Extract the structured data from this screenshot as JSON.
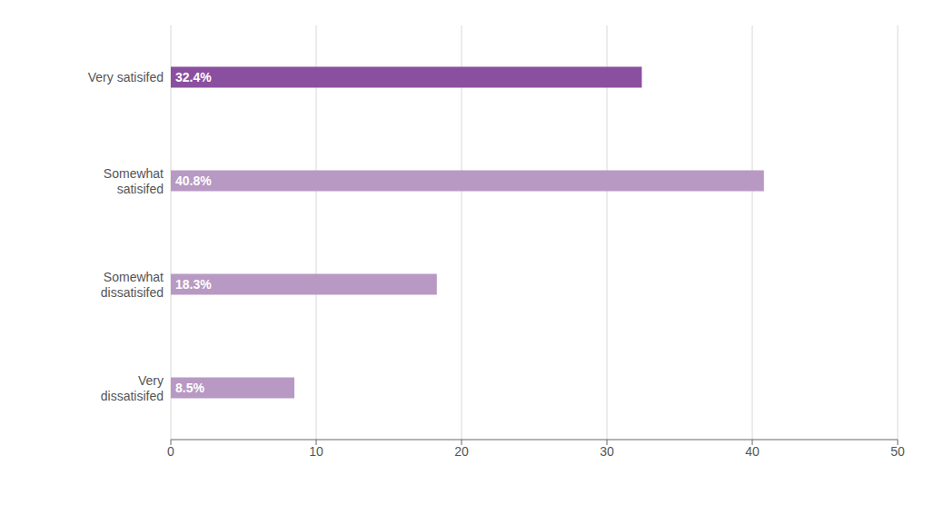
{
  "chart_data": {
    "type": "bar",
    "orientation": "horizontal",
    "categories": [
      "Very satisifed",
      "Somewhat\nsatisifed",
      "Somewhat\ndissatisifed",
      "Very\ndissatisifed"
    ],
    "values": [
      32.4,
      40.8,
      18.3,
      8.5
    ],
    "value_labels": [
      "32.4%",
      "40.8%",
      "18.3%",
      "8.5%"
    ],
    "colors": [
      "#8b4fa0",
      "#b899c4",
      "#b899c4",
      "#b899c4"
    ],
    "xlim": [
      0,
      50
    ],
    "xticks": [
      0,
      10,
      20,
      30,
      40,
      50
    ],
    "grid": true,
    "data_labels": true
  }
}
